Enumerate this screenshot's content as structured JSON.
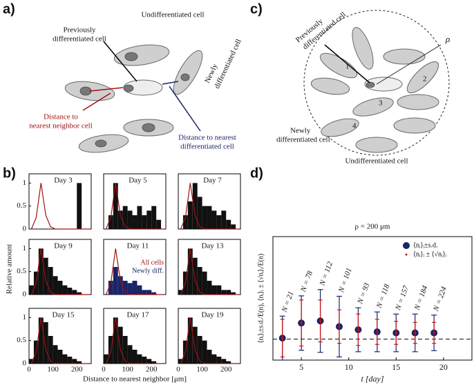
{
  "panel_labels": [
    "a)",
    "b)",
    "c)",
    "d)"
  ],
  "diagram_a": {
    "undifferentiated": "Undifferentiated cell",
    "previously": [
      "Previously",
      "differentiated cell"
    ],
    "newly": [
      "Newly",
      "differentiated cell"
    ],
    "neighbor": [
      "Distance to",
      "nearest neighbor cell"
    ],
    "differentiated": [
      "Distance to nearest",
      "differentiated cell"
    ]
  },
  "diagram_c": {
    "previously": [
      "Previously",
      "differentiated cell"
    ],
    "newly": [
      "Newly",
      "differentiated cell"
    ],
    "undifferentiated": "Undifferentiated cell",
    "radius": "ρ",
    "numbers": [
      "1",
      "2",
      "3",
      "4"
    ]
  },
  "panel_b": {
    "ylabel": "Relative amount",
    "xlabel": "Distance to nearest neighbor [μm]"
  },
  "chart_data": [
    {
      "type": "histogram",
      "title": "Day 3",
      "bins": [
        0,
        20,
        40,
        60,
        80,
        100,
        120,
        140,
        160,
        180,
        200,
        220,
        240,
        260
      ],
      "xlim": [
        0,
        260
      ],
      "ylim": [
        0,
        1.2
      ],
      "yticks": [
        0,
        0.5,
        1
      ],
      "series": [
        {
          "color": "#111111",
          "values": [
            0,
            0,
            0,
            0,
            0,
            0,
            0,
            0,
            0,
            0,
            1,
            0,
            0
          ]
        },
        {
          "color": "#a01010",
          "values": [
            0,
            0.25,
            1,
            0.3,
            0.05,
            0,
            0,
            0,
            0,
            0,
            0,
            0,
            0
          ]
        }
      ]
    },
    {
      "type": "histogram",
      "title": "Day 5",
      "bins": [
        0,
        20,
        40,
        60,
        80,
        100,
        120,
        140,
        160,
        180,
        200,
        220,
        240,
        260
      ],
      "xlim": [
        0,
        260
      ],
      "ylim": [
        0,
        1.2
      ],
      "series": [
        {
          "color": "#111111",
          "values": [
            0,
            0.3,
            1,
            0.4,
            0.5,
            0.4,
            0.3,
            0.5,
            0.3,
            0.4,
            0.5,
            0.2,
            0
          ]
        },
        {
          "color": "#a01010",
          "values": [
            0,
            0.25,
            1,
            0.3,
            0.05,
            0,
            0,
            0,
            0,
            0,
            0,
            0,
            0
          ]
        }
      ]
    },
    {
      "type": "histogram",
      "title": "Day 7",
      "bins": [
        0,
        20,
        40,
        60,
        80,
        100,
        120,
        140,
        160,
        180,
        200,
        220,
        240,
        260
      ],
      "xlim": [
        0,
        260
      ],
      "ylim": [
        0,
        1.2
      ],
      "series": [
        {
          "color": "#111111",
          "values": [
            0,
            0.3,
            0.6,
            1,
            0.7,
            0.5,
            0.5,
            0.4,
            0.3,
            0.4,
            0.2,
            0.1,
            0
          ]
        },
        {
          "color": "#a01010",
          "values": [
            0,
            0.25,
            1,
            0.3,
            0.05,
            0,
            0,
            0,
            0,
            0,
            0,
            0,
            0
          ]
        }
      ]
    },
    {
      "type": "histogram",
      "title": "Day 9",
      "bins": [
        0,
        20,
        40,
        60,
        80,
        100,
        120,
        140,
        160,
        180,
        200,
        220,
        240,
        260
      ],
      "xlim": [
        0,
        260
      ],
      "ylim": [
        0,
        1.2
      ],
      "yticks": [
        0,
        0.5,
        1
      ],
      "series": [
        {
          "color": "#111111",
          "values": [
            0.2,
            0.5,
            1,
            0.8,
            0.6,
            0.4,
            0.3,
            0.2,
            0.15,
            0.1,
            0.05,
            0,
            0
          ]
        },
        {
          "color": "#a01010",
          "values": [
            0,
            0.25,
            1,
            0.3,
            0.05,
            0,
            0,
            0,
            0,
            0,
            0,
            0,
            0
          ]
        }
      ]
    },
    {
      "type": "histogram",
      "title": "Day 11",
      "bins": [
        0,
        20,
        40,
        60,
        80,
        100,
        120,
        140,
        160,
        180,
        200,
        220,
        240,
        260
      ],
      "xlim": [
        0,
        260
      ],
      "ylim": [
        0,
        1.2
      ],
      "series": [
        {
          "name": "Newly diff.",
          "color": "#1a2466",
          "values": [
            0,
            0.3,
            0.6,
            0.4,
            0.3,
            0.25,
            0.3,
            0.2,
            0.1,
            0.1,
            0.05,
            0,
            0
          ]
        },
        {
          "name": "All cells",
          "color": "#a01010",
          "values": [
            0,
            0.25,
            1,
            0.3,
            0.05,
            0,
            0,
            0,
            0,
            0,
            0,
            0,
            0
          ]
        }
      ]
    },
    {
      "type": "histogram",
      "title": "Day 13",
      "bins": [
        0,
        20,
        40,
        60,
        80,
        100,
        120,
        140,
        160,
        180,
        200,
        220,
        240,
        260
      ],
      "xlim": [
        0,
        260
      ],
      "ylim": [
        0,
        1.2
      ],
      "series": [
        {
          "color": "#111111",
          "values": [
            0.1,
            0.5,
            1,
            0.8,
            0.6,
            0.5,
            0.3,
            0.2,
            0.2,
            0.1,
            0.1,
            0.05,
            0
          ]
        },
        {
          "color": "#a01010",
          "values": [
            0,
            0.25,
            1,
            0.3,
            0.05,
            0,
            0,
            0,
            0,
            0,
            0,
            0,
            0
          ]
        }
      ]
    },
    {
      "type": "histogram",
      "title": "Day 15",
      "bins": [
        0,
        20,
        40,
        60,
        80,
        100,
        120,
        140,
        160,
        180,
        200,
        220,
        240,
        260
      ],
      "xlim": [
        0,
        260
      ],
      "ylim": [
        0,
        1.2
      ],
      "yticks": [
        0,
        0.5,
        1
      ],
      "xticks": [
        0,
        100,
        200
      ],
      "series": [
        {
          "color": "#111111",
          "values": [
            0.1,
            0.5,
            1,
            0.9,
            0.6,
            0.4,
            0.3,
            0.2,
            0.15,
            0.1,
            0.05,
            0,
            0
          ]
        },
        {
          "color": "#a01010",
          "values": [
            0,
            0.25,
            1,
            0.3,
            0.05,
            0,
            0,
            0,
            0,
            0,
            0,
            0,
            0
          ]
        }
      ]
    },
    {
      "type": "histogram",
      "title": "Day 17",
      "bins": [
        0,
        20,
        40,
        60,
        80,
        100,
        120,
        140,
        160,
        180,
        200,
        220,
        240,
        260
      ],
      "xlim": [
        0,
        260
      ],
      "ylim": [
        0,
        1.2
      ],
      "xticks": [
        0,
        100,
        200
      ],
      "series": [
        {
          "color": "#111111",
          "values": [
            0.2,
            0.6,
            1,
            0.8,
            0.6,
            0.4,
            0.3,
            0.2,
            0.15,
            0.1,
            0.05,
            0,
            0
          ]
        },
        {
          "color": "#a01010",
          "values": [
            0,
            0.25,
            1,
            0.3,
            0.05,
            0,
            0,
            0,
            0,
            0,
            0,
            0,
            0
          ]
        }
      ]
    },
    {
      "type": "histogram",
      "title": "Day 19",
      "bins": [
        0,
        20,
        40,
        60,
        80,
        100,
        120,
        140,
        160,
        180,
        200,
        220,
        240,
        260
      ],
      "xlim": [
        0,
        260
      ],
      "ylim": [
        0,
        1.2
      ],
      "xticks": [
        0,
        100,
        200
      ],
      "series": [
        {
          "color": "#111111",
          "values": [
            0.1,
            0.5,
            1,
            0.8,
            0.6,
            0.5,
            0.3,
            0.2,
            0.15,
            0.1,
            0.05,
            0,
            0
          ]
        },
        {
          "color": "#a01010",
          "values": [
            0,
            0.25,
            1,
            0.3,
            0.05,
            0,
            0,
            0,
            0,
            0,
            0,
            0,
            0
          ]
        }
      ]
    },
    {
      "type": "errorbar",
      "title": "ρ = 200 μm",
      "xlabel": "t [day]",
      "ylabel": "⟨nᵢ⟩ᵢ±s.d./E(n), ⟨nᵢ⟩ᵢ ± ⟨√nᵢ⟩ᵢ/E(n)",
      "x": [
        3,
        5,
        7,
        9,
        11,
        13,
        15,
        17,
        19
      ],
      "xlim": [
        2,
        23
      ],
      "xticks": [
        5,
        10,
        15,
        20
      ],
      "ylim": [
        0,
        5.9
      ],
      "reference_line": 1,
      "annotations": [
        "N = 21",
        "N = 78",
        "N = 112",
        "N = 101",
        "N = 93",
        "N = 118",
        "N = 157",
        "N = 184",
        "N = 224"
      ],
      "series": [
        {
          "name": "⟨nᵢ⟩ᵢ±s.d.",
          "color": "#1a2466",
          "values": [
            1.05,
            1.77,
            1.87,
            1.6,
            1.45,
            1.35,
            1.3,
            1.3,
            1.3
          ],
          "errors": [
            1.05,
            1.3,
            1.5,
            1.45,
            1.05,
            0.95,
            0.9,
            0.9,
            0.85
          ]
        },
        {
          "name": "⟨nᵢ⟩ᵢ ± ⟨√nᵢ⟩ᵢ",
          "color": "#cc1010",
          "values": [
            1.05,
            1.77,
            1.87,
            1.6,
            1.45,
            1.35,
            1.3,
            1.3,
            1.3
          ],
          "errors": [
            0.9,
            1.1,
            1.0,
            0.8,
            0.75,
            0.6,
            0.55,
            0.5,
            0.5
          ]
        }
      ]
    }
  ]
}
